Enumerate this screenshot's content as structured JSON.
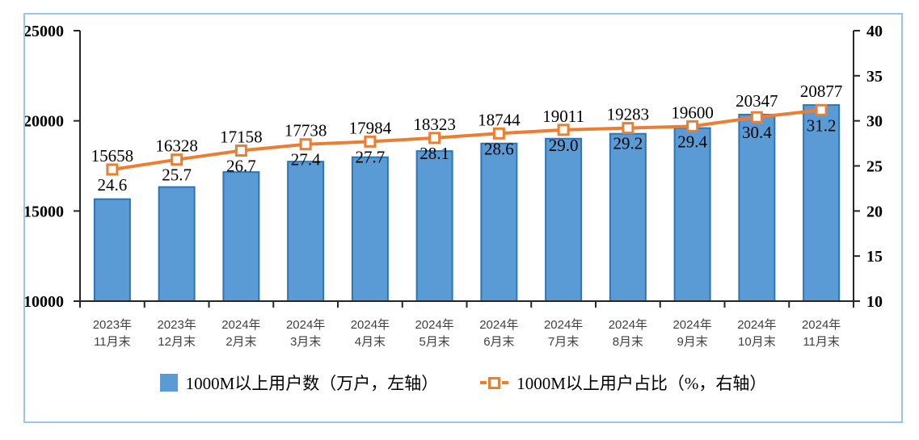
{
  "frame": {
    "border_color": "#9DC3E6",
    "background": "#FFFFFF"
  },
  "chart_data": {
    "type": "bar",
    "subtype": "bar+line dual axis",
    "categories": [
      "2023年11月末",
      "2023年12月末",
      "2024年2月末",
      "2024年3月末",
      "2024年4月末",
      "2024年5月末",
      "2024年6月末",
      "2024年7月末",
      "2024年8月末",
      "2024年9月末",
      "2024年10月末",
      "2024年11月末"
    ],
    "category_lines": [
      [
        "2023年",
        "11月末"
      ],
      [
        "2023年",
        "12月末"
      ],
      [
        "2024年",
        "2月末"
      ],
      [
        "2024年",
        "3月末"
      ],
      [
        "2024年",
        "4月末"
      ],
      [
        "2024年",
        "5月末"
      ],
      [
        "2024年",
        "6月末"
      ],
      [
        "2024年",
        "7月末"
      ],
      [
        "2024年",
        "8月末"
      ],
      [
        "2024年",
        "9月末"
      ],
      [
        "2024年",
        "10月末"
      ],
      [
        "2024年",
        "11月末"
      ]
    ],
    "series": [
      {
        "name": "1000M以上用户数（万户，左轴）",
        "type": "bar",
        "axis": "left",
        "values": [
          15658,
          16328,
          17158,
          17738,
          17984,
          18323,
          18744,
          19011,
          19283,
          19600,
          20347,
          20877
        ],
        "labels": [
          "15658",
          "16328",
          "17158",
          "17738",
          "17984",
          "18323",
          "18744",
          "19011",
          "19283",
          "19600",
          "20347",
          "20877"
        ],
        "color": "#5B9BD5",
        "border_color": "#2E75B6"
      },
      {
        "name": "1000M以上用户占比（%，右轴）",
        "type": "line",
        "axis": "right",
        "values": [
          24.6,
          25.7,
          26.7,
          27.4,
          27.7,
          28.1,
          28.6,
          29.0,
          29.2,
          29.4,
          30.4,
          31.2
        ],
        "labels": [
          "24.6",
          "25.7",
          "26.7",
          "27.4",
          "27.7",
          "28.1",
          "28.6",
          "29.0",
          "29.2",
          "29.4",
          "30.4",
          "31.2"
        ],
        "color": "#ED7D31",
        "marker": "square-white-fill"
      }
    ],
    "axes": {
      "left": {
        "min": 10000,
        "max": 25000,
        "ticks": [
          25000,
          20000,
          15000,
          10000
        ]
      },
      "right": {
        "min": 10,
        "max": 40,
        "ticks": [
          40,
          35,
          30,
          25,
          20,
          15,
          10
        ]
      }
    },
    "grid": false,
    "legend_position": "bottom",
    "axis_color": "#262626"
  }
}
